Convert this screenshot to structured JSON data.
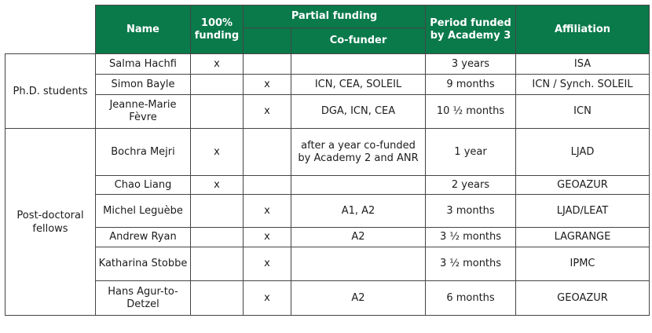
{
  "header": {
    "name": "Name",
    "full_funding": "100% funding",
    "partial_funding": "Partial funding",
    "cofunder": "Co-funder",
    "period": "Period funded by Academy 3",
    "affiliation": "Affiliation"
  },
  "categories": {
    "phd": "Ph.D. students",
    "postdoc": "Post-doctoral fellows"
  },
  "rows": [
    {
      "name": "Salma Hachfi",
      "full": "x",
      "partial": "",
      "cofunder": "",
      "period": "3 years",
      "affiliation": "ISA"
    },
    {
      "name": "Simon Bayle",
      "full": "",
      "partial": "x",
      "cofunder": "ICN, CEA, SOLEIL",
      "period": "9 months",
      "affiliation": "ICN / Synch. SOLEIL"
    },
    {
      "name": "Jeanne-Marie Fèvre",
      "full": "",
      "partial": "x",
      "cofunder": "DGA, ICN, CEA",
      "period": "10 ½ months",
      "affiliation": "ICN"
    },
    {
      "name": "Bochra Mejri",
      "full": "x",
      "partial": "",
      "cofunder": "after a year co-funded by Academy 2 and ANR",
      "period": "1 year",
      "affiliation": "LJAD"
    },
    {
      "name": "Chao Liang",
      "full": "x",
      "partial": "",
      "cofunder": "",
      "period": "2 years",
      "affiliation": "GEOAZUR"
    },
    {
      "name": "Michel Leguèbe",
      "full": "",
      "partial": "x",
      "cofunder": "A1, A2",
      "period": "3 months",
      "affiliation": "LJAD/LEAT"
    },
    {
      "name": "Andrew Ryan",
      "full": "",
      "partial": "x",
      "cofunder": "A2",
      "period": "3 ½ months",
      "affiliation": "LAGRANGE"
    },
    {
      "name": "Katharina Stobbe",
      "full": "",
      "partial": "x",
      "cofunder": "",
      "period": "3 ½ months",
      "affiliation": "IPMC"
    },
    {
      "name": "Hans Agur-to-Detzel",
      "full": "",
      "partial": "x",
      "cofunder": "A2",
      "period": "6 months",
      "affiliation": "GEOAZUR"
    }
  ]
}
